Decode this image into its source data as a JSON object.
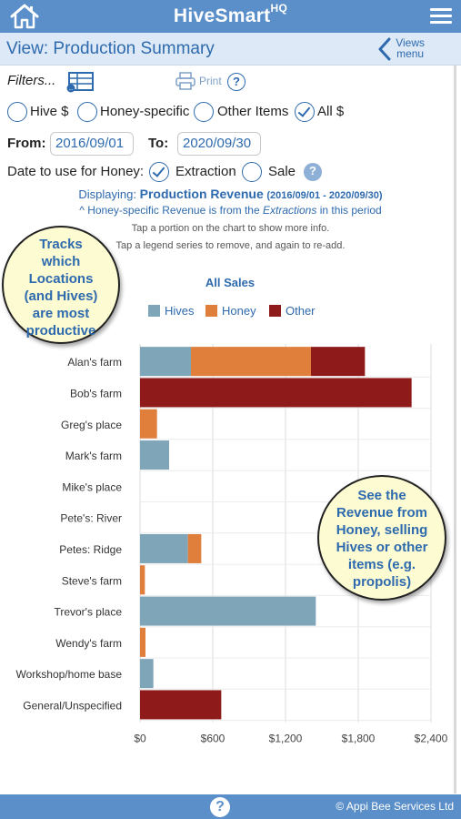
{
  "app": {
    "brand": "HiveSmart",
    "brand_sup": "HQ"
  },
  "viewbar": {
    "view_label": "View:",
    "view_name": "Production Summary",
    "views_line1": "Views",
    "views_line2": "menu"
  },
  "filters": {
    "label": "Filters...",
    "print_label": "Print",
    "help_icon": "?",
    "options": [
      {
        "label": "Hive $",
        "checked": false
      },
      {
        "label": "Honey-specific",
        "checked": false
      },
      {
        "label": "Other Items",
        "checked": false
      },
      {
        "label": "All $",
        "checked": true
      }
    ],
    "from_label": "From:",
    "from_value": "2016/09/01",
    "to_label": "To:",
    "to_value": "2020/09/30",
    "honey_date_label": "Date to use for Honey:",
    "honey_date_options": [
      {
        "label": "Extraction",
        "checked": true
      },
      {
        "label": "Sale",
        "checked": false
      }
    ]
  },
  "summary": {
    "displaying_label": "Displaying:",
    "displaying_value": "Production Revenue",
    "displaying_range": "(2016/09/01 - 2020/09/30)",
    "note_prefix": "^ Honey-specific Revenue is from the",
    "note_em": "Extractions",
    "note_suffix": "in this period",
    "tip1": "Tap a portion on the chart to show more info.",
    "tip2": "Tap a legend series to remove, and again to re-add."
  },
  "callouts": {
    "left": [
      "Tracks",
      "which",
      "Locations",
      "(and Hives)",
      "are most",
      "productive"
    ],
    "right": [
      "See the",
      "Revenue from",
      "Honey, selling",
      "Hives or other",
      "items (e.g.",
      "propolis)"
    ]
  },
  "chart_data": {
    "type": "bar",
    "orientation": "horizontal",
    "stacked": true,
    "title": "All Sales",
    "legend_position": "top",
    "categories": [
      "Alan's farm",
      "Bob's farm",
      "Greg's place",
      "Mark's farm",
      "Mike's place",
      "Pete's: River",
      "Petes: Ridge",
      "Steve's farm",
      "Trevor's place",
      "Wendy's farm",
      "Workshop/home base",
      "General/Unspecified"
    ],
    "series": [
      {
        "name": "Hives",
        "color": "#7fa6b8",
        "values": [
          420,
          0,
          0,
          240,
          0,
          0,
          395,
          0,
          1450,
          0,
          110,
          0
        ]
      },
      {
        "name": "Honey",
        "color": "#e07e3c",
        "values": [
          990,
          0,
          140,
          0,
          0,
          0,
          110,
          40,
          0,
          45,
          0,
          0
        ]
      },
      {
        "name": "Other",
        "color": "#8e1a1a",
        "values": [
          445,
          2240,
          0,
          0,
          0,
          0,
          0,
          0,
          0,
          0,
          0,
          670
        ]
      }
    ],
    "xlim": [
      0,
      2400
    ],
    "xticks": [
      "$0",
      "$600",
      "$1,200",
      "$1,800",
      "$2,400"
    ],
    "grid": true
  },
  "footer": {
    "help_icon": "?",
    "copyright": "© Appi Bee Services Ltd"
  }
}
